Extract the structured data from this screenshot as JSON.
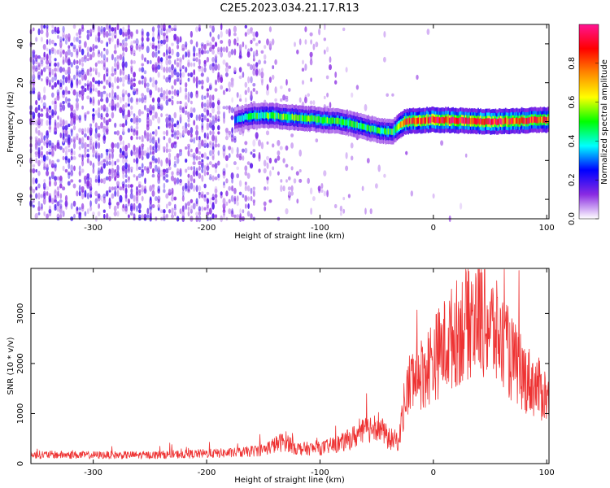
{
  "figure_title": "C2E5.2023.034.21.17.R13",
  "colors": {
    "snr_line": "#ee3333",
    "frame": "#000000",
    "spectro_low": "#7722ff",
    "spectro_mid": "#00cc66",
    "spectro_high": "#ff2222"
  },
  "chart_data": [
    {
      "type": "heatmap",
      "title": "",
      "xlabel": "Height of straight line (km)",
      "ylabel": "Frequency (Hz)",
      "xlim": [
        -355,
        102
      ],
      "ylim": [
        -50,
        50
      ],
      "x_ticks": [
        -300,
        -200,
        -100,
        0,
        100
      ],
      "x_tick_labels": [
        "-300",
        "-200",
        "-100",
        "0",
        "100"
      ],
      "y_ticks": [
        -40,
        -20,
        0,
        20,
        40
      ],
      "y_tick_labels": [
        "-40",
        "-20",
        "0",
        "20",
        "40"
      ],
      "colorbar": {
        "label": "Normalized spectral amplitude",
        "range": [
          0,
          1
        ],
        "ticks": [
          0.0,
          0.2,
          0.4,
          0.6,
          0.8
        ],
        "tick_labels": [
          "0.0",
          "0.2",
          "0.4",
          "0.6",
          "0.8"
        ],
        "colormap": [
          "#ffffff",
          "#8a2be2",
          "#0000ff",
          "#00ffff",
          "#00ff00",
          "#ffff00",
          "#ff8800",
          "#ff0000",
          "#ff1493"
        ]
      },
      "ridge": {
        "x": [
          -175,
          -160,
          -140,
          -120,
          -100,
          -80,
          -60,
          -45,
          -35,
          -25,
          0,
          50,
          100
        ],
        "frequency": [
          1,
          3,
          3,
          2,
          1,
          0,
          -3,
          -5,
          -5,
          0,
          1,
          0,
          1
        ],
        "amplitude": [
          0.3,
          0.45,
          0.5,
          0.5,
          0.5,
          0.5,
          0.45,
          0.45,
          0.5,
          0.8,
          0.9,
          0.9,
          0.8
        ]
      },
      "noise_density": {
        "x": [
          -355,
          -250,
          -200,
          -160,
          -150,
          -130,
          -100,
          -80,
          -60,
          -40,
          102
        ],
        "value": [
          0.55,
          0.55,
          0.5,
          0.35,
          0.2,
          0.15,
          0.12,
          0.05,
          0.04,
          0.01,
          0.0
        ]
      }
    },
    {
      "type": "line",
      "title": "",
      "xlabel": "Height of straight line (km)",
      "ylabel": "SNR (10 * v/v)",
      "xlim": [
        -355,
        102
      ],
      "ylim": [
        0,
        3900
      ],
      "x_ticks": [
        -300,
        -200,
        -100,
        0,
        100
      ],
      "x_tick_labels": [
        "-300",
        "-200",
        "-100",
        "0",
        "100"
      ],
      "y_ticks": [
        0,
        1000,
        2000,
        3000
      ],
      "y_tick_labels": [
        "0",
        "1000",
        "2000",
        "3000"
      ],
      "series": [
        {
          "x": [
            -355,
            -300,
            -250,
            -200,
            -170,
            -150,
            -135,
            -130,
            -120,
            -100,
            -80,
            -60,
            -50,
            -40,
            -30,
            -28,
            -25,
            -20,
            -10,
            0,
            10,
            20,
            30,
            40,
            50,
            60,
            70,
            80,
            90,
            100,
            102
          ],
          "values": [
            180,
            170,
            170,
            200,
            220,
            280,
            420,
            450,
            300,
            300,
            420,
            650,
            800,
            500,
            450,
            900,
            1300,
            1650,
            1800,
            2100,
            2350,
            2600,
            2850,
            3000,
            2750,
            2450,
            2050,
            1750,
            1550,
            1350,
            1200
          ]
        }
      ]
    }
  ]
}
